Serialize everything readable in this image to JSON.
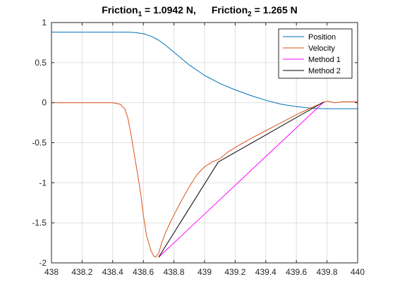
{
  "chart_data": {
    "type": "line",
    "title": {
      "part1_main": "Friction",
      "part1_sub": "1",
      "part1_rest": " = 1.0942 N,",
      "part2_main": "Friction",
      "part2_sub": "2",
      "part2_rest": " = 1.265 N"
    },
    "xlabel": "",
    "ylabel": "",
    "xlim": [
      438,
      440
    ],
    "ylim": [
      -2,
      1
    ],
    "x_ticks": [
      438,
      438.2,
      438.4,
      438.6,
      438.8,
      439,
      439.2,
      439.4,
      439.6,
      439.8,
      440
    ],
    "x_tick_labels": [
      "438",
      "438.2",
      "438.4",
      "438.6",
      "438.8",
      "439",
      "439.2",
      "439.4",
      "439.6",
      "439.8",
      "440"
    ],
    "y_ticks": [
      1,
      0.5,
      0,
      -0.5,
      -1,
      -1.5,
      -2
    ],
    "y_tick_labels": [
      "1",
      "0.5",
      "0",
      "-0.5",
      "-1",
      "-1.5",
      "-2"
    ],
    "grid": true,
    "legend_position": "top-right",
    "series": [
      {
        "name": "Position",
        "color": "#0072BD",
        "x": [
          438,
          438.3,
          438.5,
          438.55,
          438.6,
          438.65,
          438.7,
          438.75,
          438.8,
          438.9,
          439,
          439.1,
          439.2,
          439.3,
          439.4,
          439.5,
          439.6,
          439.7,
          439.8,
          440
        ],
        "y": [
          0.88,
          0.88,
          0.88,
          0.875,
          0.86,
          0.83,
          0.78,
          0.71,
          0.63,
          0.47,
          0.34,
          0.24,
          0.16,
          0.09,
          0.03,
          -0.02,
          -0.05,
          -0.07,
          -0.075,
          -0.075
        ]
      },
      {
        "name": "Velocity",
        "color": "#D95319",
        "x": [
          438,
          438.4,
          438.45,
          438.48,
          438.5,
          438.52,
          438.55,
          438.58,
          438.6,
          438.62,
          438.65,
          438.67,
          438.68,
          438.7,
          438.72,
          438.75,
          438.8,
          438.85,
          438.9,
          438.95,
          439,
          439.05,
          439.1,
          439.15,
          439.2,
          439.3,
          439.4,
          439.5,
          439.6,
          439.7,
          439.75,
          439.8,
          439.85,
          439.9,
          440
        ],
        "y": [
          0,
          0,
          -0.02,
          -0.08,
          -0.2,
          -0.4,
          -0.75,
          -1.1,
          -1.4,
          -1.65,
          -1.85,
          -1.92,
          -1.93,
          -1.88,
          -1.75,
          -1.6,
          -1.4,
          -1.22,
          -1.05,
          -0.9,
          -0.8,
          -0.74,
          -0.7,
          -0.62,
          -0.56,
          -0.45,
          -0.35,
          -0.25,
          -0.15,
          -0.06,
          -0.02,
          0.02,
          0.0,
          0.01,
          0.01
        ]
      },
      {
        "name": "Method 1",
        "color": "#FF00FF",
        "x": [
          438.7,
          439.78
        ],
        "y": [
          -1.93,
          0.01
        ]
      },
      {
        "name": "Method 2",
        "color": "#000000",
        "x": [
          438.7,
          439.09,
          439.78
        ],
        "y": [
          -1.93,
          -0.74,
          0.01
        ]
      }
    ]
  }
}
